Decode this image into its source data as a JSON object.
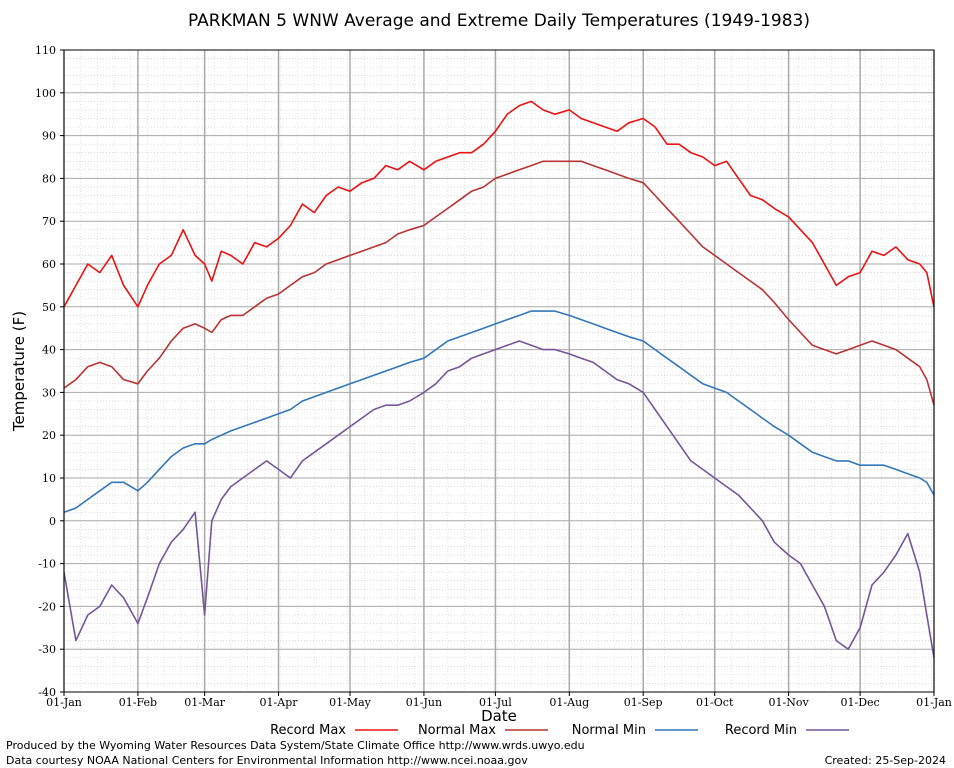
{
  "chart_data": {
    "type": "line",
    "title": "PARKMAN 5 WNW Average and Extreme Daily Temperatures (1949-1983)",
    "xlabel": "Date",
    "ylabel": "Temperature (F)",
    "ylim": [
      -40,
      110
    ],
    "yticks": [
      "110",
      "100",
      "90",
      "80",
      "70",
      "60",
      "50",
      "40",
      "30",
      "20",
      "10",
      "0",
      "-10",
      "-20",
      "-30",
      "-40"
    ],
    "xticks": [
      "01-Jan",
      "01-Feb",
      "01-Mar",
      "01-Apr",
      "01-May",
      "01-Jun",
      "01-Jul",
      "01-Aug",
      "01-Sep",
      "01-Oct",
      "01-Nov",
      "01-Dec",
      "01-Jan"
    ],
    "xtick_days": [
      0,
      31,
      59,
      90,
      120,
      151,
      181,
      212,
      243,
      273,
      304,
      334,
      365
    ],
    "x_unit": "day of year",
    "grid": true,
    "legend_position": "bottom",
    "series": [
      {
        "name": "Record Max",
        "color": "#ee1111",
        "x": [
          0,
          5,
          10,
          15,
          20,
          25,
          31,
          35,
          40,
          45,
          50,
          55,
          59,
          62,
          66,
          70,
          75,
          80,
          85,
          90,
          95,
          100,
          105,
          110,
          115,
          120,
          125,
          130,
          135,
          140,
          145,
          151,
          156,
          161,
          166,
          171,
          176,
          181,
          186,
          191,
          196,
          201,
          206,
          212,
          217,
          222,
          227,
          232,
          237,
          243,
          248,
          253,
          258,
          263,
          268,
          273,
          278,
          283,
          288,
          293,
          298,
          304,
          309,
          314,
          319,
          324,
          329,
          334,
          339,
          344,
          349,
          354,
          359,
          362,
          365
        ],
        "y": [
          50,
          55,
          60,
          58,
          62,
          55,
          50,
          55,
          60,
          62,
          68,
          62,
          60,
          56,
          63,
          62,
          60,
          65,
          64,
          66,
          69,
          74,
          72,
          76,
          78,
          77,
          79,
          80,
          83,
          82,
          84,
          82,
          84,
          85,
          86,
          86,
          88,
          91,
          95,
          97,
          98,
          96,
          95,
          96,
          94,
          93,
          92,
          91,
          93,
          94,
          92,
          88,
          88,
          86,
          85,
          83,
          84,
          80,
          76,
          75,
          73,
          71,
          68,
          65,
          60,
          55,
          57,
          58,
          63,
          62,
          64,
          61,
          60,
          58,
          50
        ]
      },
      {
        "name": "Normal Max",
        "color": "#bb3333",
        "x": [
          0,
          5,
          10,
          15,
          20,
          25,
          31,
          35,
          40,
          45,
          50,
          55,
          59,
          62,
          66,
          70,
          75,
          80,
          85,
          90,
          95,
          100,
          105,
          110,
          115,
          120,
          125,
          130,
          135,
          140,
          145,
          151,
          156,
          161,
          166,
          171,
          176,
          181,
          186,
          191,
          196,
          201,
          206,
          212,
          217,
          222,
          227,
          232,
          237,
          243,
          248,
          253,
          258,
          263,
          268,
          273,
          278,
          283,
          288,
          293,
          298,
          304,
          309,
          314,
          319,
          324,
          329,
          334,
          339,
          344,
          349,
          354,
          359,
          362,
          365
        ],
        "y": [
          31,
          33,
          36,
          37,
          36,
          33,
          32,
          35,
          38,
          42,
          45,
          46,
          45,
          44,
          47,
          48,
          48,
          50,
          52,
          53,
          55,
          57,
          58,
          60,
          61,
          62,
          63,
          64,
          65,
          67,
          68,
          69,
          71,
          73,
          75,
          77,
          78,
          80,
          81,
          82,
          83,
          84,
          84,
          84,
          84,
          83,
          82,
          81,
          80,
          79,
          76,
          73,
          70,
          67,
          64,
          62,
          60,
          58,
          56,
          54,
          51,
          47,
          44,
          41,
          40,
          39,
          40,
          41,
          42,
          41,
          40,
          38,
          36,
          33,
          27
        ]
      },
      {
        "name": "Normal Min",
        "color": "#3377bb",
        "x": [
          0,
          5,
          10,
          15,
          20,
          25,
          31,
          35,
          40,
          45,
          50,
          55,
          59,
          62,
          66,
          70,
          75,
          80,
          85,
          90,
          95,
          100,
          105,
          110,
          115,
          120,
          125,
          130,
          135,
          140,
          145,
          151,
          156,
          161,
          166,
          171,
          176,
          181,
          186,
          191,
          196,
          201,
          206,
          212,
          217,
          222,
          227,
          232,
          237,
          243,
          248,
          253,
          258,
          263,
          268,
          273,
          278,
          283,
          288,
          293,
          298,
          304,
          309,
          314,
          319,
          324,
          329,
          334,
          339,
          344,
          349,
          354,
          359,
          362,
          365
        ],
        "y": [
          2,
          3,
          5,
          7,
          9,
          9,
          7,
          9,
          12,
          15,
          17,
          18,
          18,
          19,
          20,
          21,
          22,
          23,
          24,
          25,
          26,
          28,
          29,
          30,
          31,
          32,
          33,
          34,
          35,
          36,
          37,
          38,
          40,
          42,
          43,
          44,
          45,
          46,
          47,
          48,
          49,
          49,
          49,
          48,
          47,
          46,
          45,
          44,
          43,
          42,
          40,
          38,
          36,
          34,
          32,
          31,
          30,
          28,
          26,
          24,
          22,
          20,
          18,
          16,
          15,
          14,
          14,
          13,
          13,
          13,
          12,
          11,
          10,
          9,
          6
        ]
      },
      {
        "name": "Record Min",
        "color": "#775599",
        "x": [
          0,
          5,
          10,
          15,
          20,
          25,
          31,
          35,
          40,
          45,
          50,
          55,
          59,
          62,
          66,
          70,
          75,
          80,
          85,
          90,
          95,
          100,
          105,
          110,
          115,
          120,
          125,
          130,
          135,
          140,
          145,
          151,
          156,
          161,
          166,
          171,
          176,
          181,
          186,
          191,
          196,
          201,
          206,
          212,
          217,
          222,
          227,
          232,
          237,
          243,
          248,
          253,
          258,
          263,
          268,
          273,
          278,
          283,
          288,
          293,
          298,
          304,
          309,
          314,
          319,
          324,
          329,
          334,
          339,
          344,
          349,
          354,
          359,
          362,
          365
        ],
        "y": [
          -12,
          -28,
          -22,
          -20,
          -15,
          -18,
          -24,
          -18,
          -10,
          -5,
          -2,
          2,
          -22,
          0,
          5,
          8,
          10,
          12,
          14,
          12,
          10,
          14,
          16,
          18,
          20,
          22,
          24,
          26,
          27,
          27,
          28,
          30,
          32,
          35,
          36,
          38,
          39,
          40,
          41,
          42,
          41,
          40,
          40,
          39,
          38,
          37,
          35,
          33,
          32,
          30,
          26,
          22,
          18,
          14,
          12,
          10,
          8,
          6,
          3,
          0,
          -5,
          -8,
          -10,
          -15,
          -20,
          -28,
          -30,
          -25,
          -15,
          -12,
          -8,
          -3,
          -12,
          -22,
          -32
        ]
      }
    ]
  },
  "footer": {
    "produced_by": "Produced by the Wyoming Water Resources Data System/State Climate Office http://www.wrds.uwyo.edu",
    "data_courtesy": "Data courtesy NOAA National Centers for Environmental Information http://www.ncei.noaa.gov",
    "created": "Created:  25-Sep-2024"
  }
}
